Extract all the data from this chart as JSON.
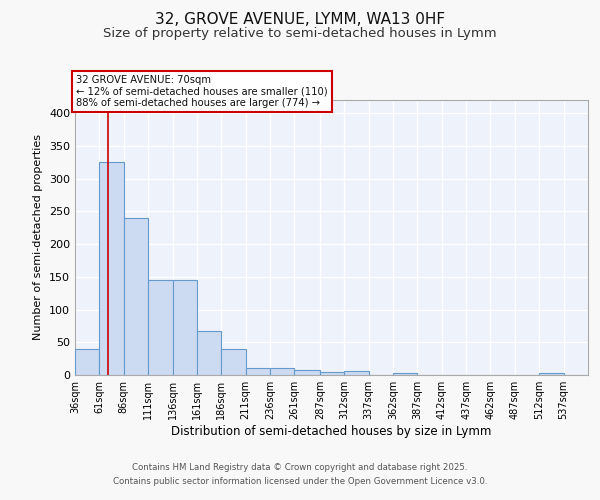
{
  "title1": "32, GROVE AVENUE, LYMM, WA13 0HF",
  "title2": "Size of property relative to semi-detached houses in Lymm",
  "xlabel": "Distribution of semi-detached houses by size in Lymm",
  "ylabel": "Number of semi-detached properties",
  "bin_edges": [
    36,
    61,
    86,
    111,
    136,
    161,
    186,
    211,
    236,
    261,
    287,
    312,
    337,
    362,
    387,
    412,
    437,
    462,
    487,
    512,
    537,
    562
  ],
  "bar_heights": [
    40,
    325,
    240,
    145,
    145,
    67,
    40,
    11,
    11,
    7,
    5,
    6,
    0,
    3,
    0,
    0,
    0,
    0,
    0,
    3,
    0
  ],
  "bar_color": "#ccdaf2",
  "bar_edge_color": "#6699cc",
  "subject_size": 70,
  "red_line_color": "#cc0000",
  "annotation_line1": "32 GROVE AVENUE: 70sqm",
  "annotation_line2": "← 12% of semi-detached houses are smaller (110)",
  "annotation_line3": "88% of semi-detached houses are larger (774) →",
  "annotation_box_color": "#ffffff",
  "annotation_box_edge": "#cc0000",
  "ylim": [
    0,
    420
  ],
  "yticks": [
    0,
    50,
    100,
    150,
    200,
    250,
    300,
    350,
    400
  ],
  "footer1": "Contains HM Land Registry data © Crown copyright and database right 2025.",
  "footer2": "Contains public sector information licensed under the Open Government Licence v3.0.",
  "bg_color": "#eef2fa",
  "grid_color": "#ffffff",
  "title1_fontsize": 11,
  "title2_fontsize": 9.5,
  "tick_labels": [
    "36sqm",
    "61sqm",
    "86sqm",
    "111sqm",
    "136sqm",
    "161sqm",
    "186sqm",
    "211sqm",
    "236sqm",
    "261sqm",
    "287sqm",
    "312sqm",
    "337sqm",
    "362sqm",
    "387sqm",
    "412sqm",
    "437sqm",
    "462sqm",
    "487sqm",
    "512sqm",
    "537sqm"
  ]
}
